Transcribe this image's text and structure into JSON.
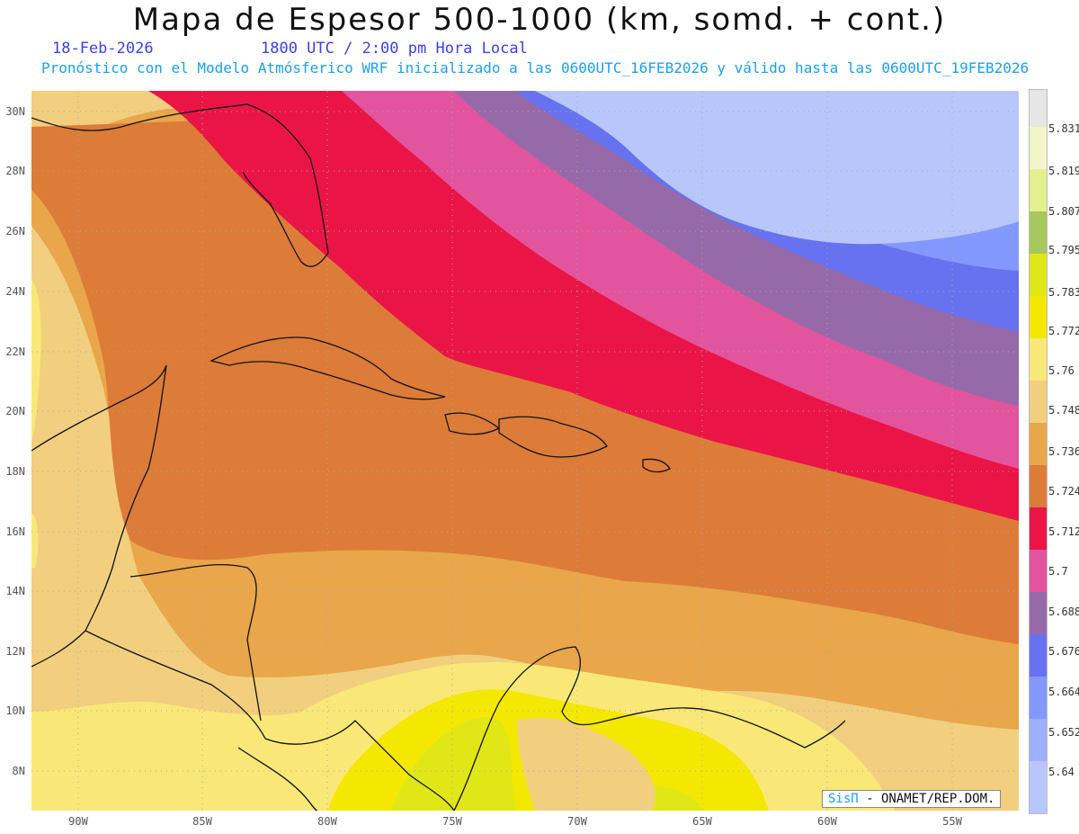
{
  "header": {
    "title": "Mapa de Espesor 500-1000 (km, somd. + cont.)",
    "date": "18-Feb-2026",
    "time": "1800 UTC / 2:00 pm Hora Local",
    "description": "Pronóstico con el Modelo Atmósferico WRF inicializado a las 0600UTC_16FEB2026 y válido hasta las  0600UTC_19FEB2026"
  },
  "map": {
    "lat_ticks": [
      "30N",
      "28N",
      "26N",
      "24N",
      "22N",
      "20N",
      "18N",
      "16N",
      "14N",
      "12N",
      "10N",
      "8N"
    ],
    "lon_ticks": [
      "90W",
      "85W",
      "80W",
      "75W",
      "70W",
      "65W",
      "60W",
      "55W"
    ]
  },
  "colorbar": {
    "labels": [
      "5.831",
      "5.819",
      "5.807",
      "5.795",
      "5.783",
      "5.772",
      "5.76",
      "5.748",
      "5.736",
      "5.724",
      "5.712",
      "5.7",
      "5.688",
      "5.676",
      "5.664",
      "5.652",
      "5.64"
    ],
    "colors": [
      "#e6e6e6",
      "#f2f5c8",
      "#e3f08e",
      "#a7c85c",
      "#e1e617",
      "#f5e800",
      "#f9e878",
      "#f1cf7f",
      "#e9a64a",
      "#dc7c38",
      "#ea1546",
      "#e2549e",
      "#966aa8",
      "#6672f0",
      "#8398ff",
      "#9db0ff",
      "#b8c7fb"
    ]
  },
  "credit": {
    "brand": "SisΠ",
    "text": " - ONAMET/REP.DOM."
  }
}
